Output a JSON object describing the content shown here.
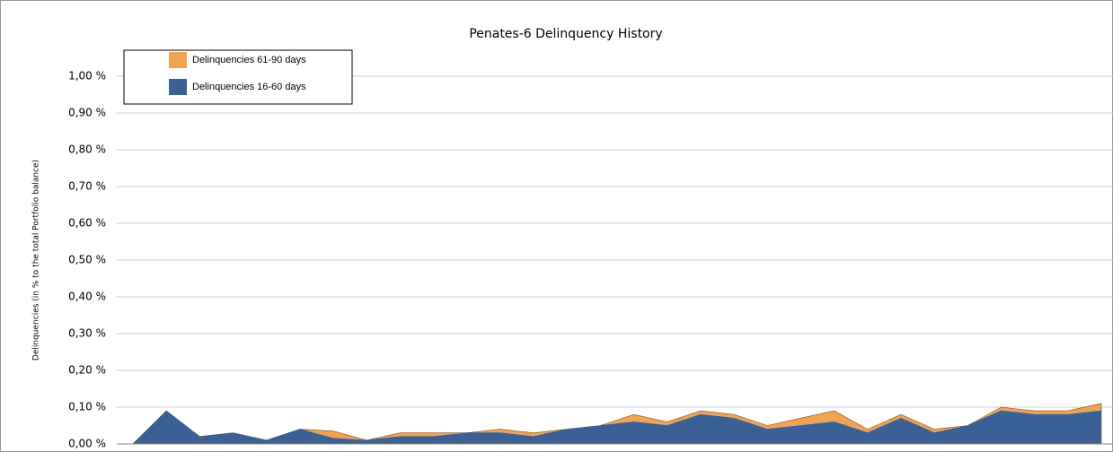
{
  "chart_data": {
    "type": "stacked_area",
    "title": "Penates-6 Delinquency History",
    "y_label": "Delinquencies (in % to the total Portfolio balance)",
    "series": [
      {
        "name": "Delinquencies 16-60 days",
        "color": "#3b6096",
        "values": [
          0,
          0.09,
          0.02,
          0.03,
          0.01,
          0.04,
          0.015,
          0.01,
          0.02,
          0.02,
          0.03,
          0.03,
          0.02,
          0.04,
          0.05,
          0.06,
          0.05,
          0.08,
          0.07,
          0.04,
          0.05,
          0.06,
          0.03,
          0.07,
          0.03,
          0.05,
          0.09,
          0.08,
          0.08,
          0.09
        ]
      },
      {
        "name": "Delinquencies 61-90 days",
        "color": "#f0a352",
        "values": [
          0,
          0,
          0,
          0,
          0,
          0,
          0.02,
          0,
          0.01,
          0.01,
          0,
          0.01,
          0.01,
          0,
          0,
          0.02,
          0.01,
          0.01,
          0.01,
          0.01,
          0.02,
          0.03,
          0.01,
          0.01,
          0.01,
          0,
          0.01,
          0.01,
          0.01,
          0.02
        ]
      }
    ],
    "ylim": [
      0,
      1
    ],
    "yticks": [
      {
        "value": 0,
        "label": "0,00 %"
      },
      {
        "value": 0.1,
        "label": "0,10 %"
      },
      {
        "value": 0.2,
        "label": "0,20 %"
      },
      {
        "value": 0.3,
        "label": "0,30 %"
      },
      {
        "value": 0.4,
        "label": "0,40 %"
      },
      {
        "value": 0.5,
        "label": "0,50 %"
      },
      {
        "value": 0.6,
        "label": "0,60 %"
      },
      {
        "value": 0.7,
        "label": "0,70 %"
      },
      {
        "value": 0.8,
        "label": "0,80 %"
      },
      {
        "value": 0.9,
        "label": "0,90 %"
      },
      {
        "value": 1,
        "label": "1,00 %"
      }
    ],
    "grid": true
  }
}
